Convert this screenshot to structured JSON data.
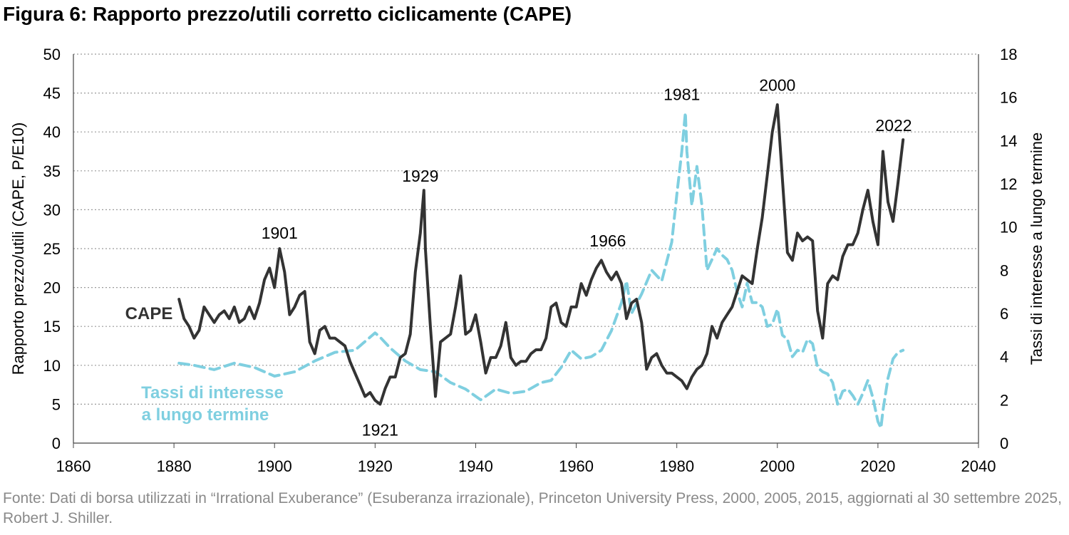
{
  "figure": {
    "title": "Figura 6: Rapporto prezzo/utili corretto ciclicamente (CAPE)",
    "source": "Fonte: Dati di borsa utilizzati in “Irrational Exuberance” (Esuberanza irrazionale), Princeton University Press, 2000, 2005, 2015, aggiornati al 30 settembre 2025, Robert J. Shiller."
  },
  "colors": {
    "cape": "#333333",
    "rates": "#7fcfe0",
    "grid": "#9a9a9a"
  },
  "chart_data": {
    "type": "line",
    "xlim": [
      1860,
      2040
    ],
    "x_ticks": [
      "1860",
      "1880",
      "1900",
      "1920",
      "1940",
      "1960",
      "1980",
      "2000",
      "2020",
      "2040"
    ],
    "ylabel": "Rapporto prezzo/utili (CAPE, P/E10)",
    "ylim": [
      0,
      50
    ],
    "y_ticks": [
      "0",
      "5",
      "10",
      "15",
      "20",
      "25",
      "30",
      "35",
      "40",
      "45",
      "50"
    ],
    "y2label": "Tassi di interesse a lungo termine",
    "y2lim": [
      0,
      18
    ],
    "y2_ticks": [
      "0",
      "2",
      "4",
      "6",
      "8",
      "10",
      "12",
      "14",
      "16",
      "18"
    ],
    "grid": "horizontal dotted",
    "series": [
      {
        "name": "CAPE",
        "axis": "left",
        "style": "solid",
        "x": [
          1881,
          1882,
          1883,
          1884,
          1885,
          1886,
          1887,
          1888,
          1889,
          1890,
          1891,
          1892,
          1893,
          1894,
          1895,
          1896,
          1897,
          1898,
          1899,
          1900,
          1901,
          1902,
          1903,
          1904,
          1905,
          1906,
          1907,
          1908,
          1909,
          1910,
          1911,
          1912,
          1913,
          1914,
          1915,
          1916,
          1917,
          1918,
          1919,
          1920,
          1921,
          1922,
          1923,
          1924,
          1925,
          1926,
          1927,
          1928,
          1929,
          1929.7,
          1930,
          1931,
          1932,
          1933,
          1934,
          1935,
          1936,
          1937,
          1938,
          1939,
          1940,
          1941,
          1942,
          1943,
          1944,
          1945,
          1946,
          1947,
          1948,
          1949,
          1950,
          1951,
          1952,
          1953,
          1954,
          1955,
          1956,
          1957,
          1958,
          1959,
          1960,
          1961,
          1962,
          1963,
          1964,
          1965,
          1966,
          1967,
          1968,
          1969,
          1970,
          1971,
          1972,
          1973,
          1974,
          1975,
          1976,
          1977,
          1978,
          1979,
          1980,
          1981,
          1982,
          1983,
          1984,
          1985,
          1986,
          1987,
          1988,
          1989,
          1990,
          1991,
          1992,
          1993,
          1994,
          1995,
          1996,
          1997,
          1998,
          1999,
          2000,
          2001,
          2002,
          2003,
          2004,
          2005,
          2006,
          2007,
          2008,
          2009,
          2010,
          2011,
          2012,
          2013,
          2014,
          2015,
          2016,
          2017,
          2018,
          2019,
          2020,
          2021,
          2022,
          2023,
          2024,
          2025
        ],
        "values": [
          18.5,
          16,
          15,
          13.5,
          14.5,
          17.5,
          16.5,
          15.5,
          16.5,
          17,
          16,
          17.5,
          15.5,
          16,
          17.5,
          16,
          18,
          21,
          22.5,
          20,
          25,
          22,
          16.5,
          17.5,
          19,
          19.5,
          13,
          11.5,
          14.5,
          15,
          13.5,
          13.5,
          13,
          12.5,
          10.5,
          9,
          7.5,
          6,
          6.5,
          5.5,
          5,
          7,
          8.5,
          8.5,
          11,
          11.5,
          14,
          22,
          27,
          32.5,
          25,
          15,
          6,
          13,
          13.5,
          14,
          17.5,
          21.5,
          14,
          14.5,
          16.5,
          13,
          9,
          11,
          11,
          12.5,
          15.5,
          11,
          10,
          10.5,
          10.5,
          11.5,
          12,
          12,
          13.5,
          17.5,
          18,
          15.5,
          15,
          17.5,
          17.5,
          20.5,
          19,
          21,
          22.5,
          23.5,
          22,
          21,
          22,
          20.5,
          16,
          18,
          18.5,
          15.5,
          9.5,
          11,
          11.5,
          10,
          9,
          9,
          8.5,
          8,
          7,
          8.5,
          9.5,
          10,
          11.5,
          15,
          13.5,
          15.5,
          16.5,
          17.5,
          19.5,
          21.5,
          21,
          20.5,
          25,
          29,
          34.5,
          40,
          43.5,
          34,
          24.5,
          23.5,
          27,
          26,
          26.5,
          26,
          17,
          13.5,
          20.5,
          21.5,
          21,
          24,
          25.5,
          25.5,
          27,
          30,
          32.5,
          28.5,
          25.5,
          37.5,
          31,
          28.5,
          33.5,
          39
        ]
      },
      {
        "name": "Tassi di interesse a lungo termine",
        "axis": "right",
        "style": "dashed",
        "x": [
          1881,
          1884,
          1888,
          1892,
          1896,
          1900,
          1904,
          1908,
          1912,
          1916,
          1918,
          1920,
          1921,
          1923,
          1926,
          1929,
          1932,
          1935,
          1938,
          1941,
          1944,
          1947,
          1950,
          1953,
          1955,
          1957,
          1959,
          1961,
          1963,
          1965,
          1967,
          1969,
          1970,
          1971,
          1973,
          1975,
          1977,
          1979,
          1980,
          1981,
          1981.7,
          1982,
          1983,
          1984,
          1985,
          1986,
          1987,
          1988,
          1989,
          1990,
          1991,
          1992,
          1993,
          1994,
          1995,
          1996,
          1997,
          1998,
          1999,
          2000,
          2001,
          2002,
          2003,
          2004,
          2005,
          2006,
          2007,
          2008,
          2009,
          2010,
          2011,
          2012,
          2013,
          2014,
          2015,
          2016,
          2017,
          2018,
          2019,
          2020,
          2020.6,
          2021,
          2022,
          2023,
          2024,
          2025
        ],
        "values": [
          3.7,
          3.6,
          3.4,
          3.7,
          3.5,
          3.1,
          3.3,
          3.8,
          4.2,
          4.3,
          4.7,
          5.1,
          4.9,
          4.4,
          3.8,
          3.4,
          3.3,
          2.8,
          2.5,
          2.0,
          2.5,
          2.3,
          2.4,
          2.8,
          2.9,
          3.5,
          4.3,
          3.9,
          4.0,
          4.3,
          5.2,
          6.5,
          7.5,
          6.0,
          6.9,
          8.0,
          7.5,
          9.3,
          11.5,
          13.5,
          15.3,
          13.5,
          11.0,
          12.8,
          11.0,
          8.0,
          8.5,
          9.0,
          8.7,
          8.5,
          8.0,
          7.0,
          6.3,
          7.4,
          6.5,
          6.5,
          6.3,
          5.4,
          5.5,
          6.2,
          5.0,
          4.8,
          4.0,
          4.3,
          4.2,
          4.8,
          4.6,
          3.5,
          3.3,
          3.2,
          2.8,
          1.8,
          2.4,
          2.5,
          2.2,
          1.8,
          2.3,
          2.9,
          2.1,
          1.0,
          0.7,
          1.5,
          3.0,
          3.9,
          4.2,
          4.3
        ]
      }
    ],
    "annotations": [
      {
        "text": "1901",
        "x": 1901,
        "y": 25
      },
      {
        "text": "1929",
        "x": 1929,
        "y": 32.5
      },
      {
        "text": "1921",
        "x": 1921,
        "y": 5
      },
      {
        "text": "1966",
        "x": 1966,
        "y": 24
      },
      {
        "text": "1981",
        "x": 1981,
        "y": 43
      },
      {
        "text": "2000",
        "x": 2000,
        "y": 44
      },
      {
        "text": "2022",
        "x": 2022,
        "y": 39
      }
    ],
    "series_labels": [
      {
        "lines": [
          "CAPE"
        ],
        "series": "CAPE"
      },
      {
        "lines": [
          "Tassi di interesse",
          "a lungo termine"
        ],
        "series": "Tassi di interesse a lungo termine"
      }
    ]
  }
}
